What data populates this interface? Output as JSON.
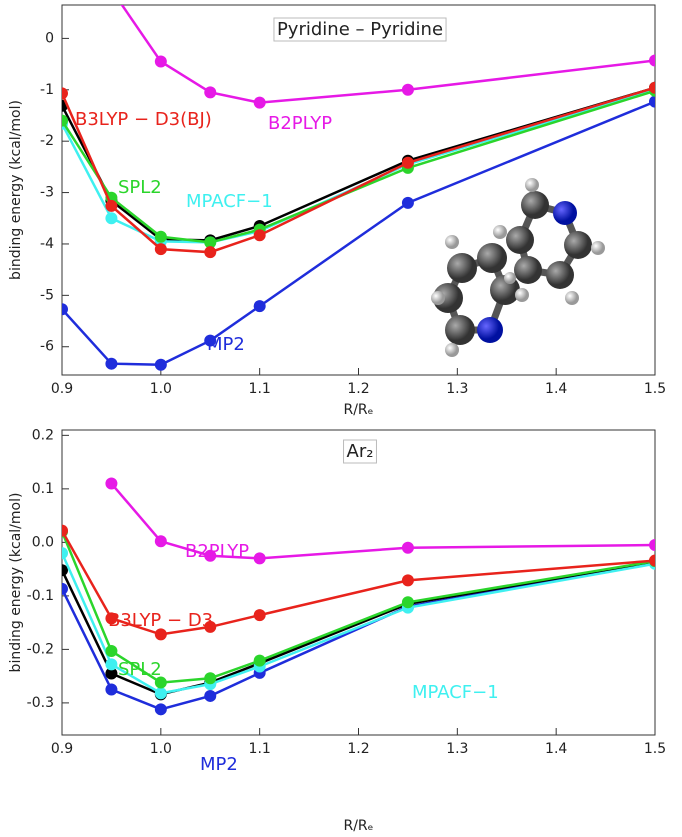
{
  "chart_data": [
    {
      "type": "line",
      "title": "Pyridine – Pyridine",
      "x_label": "R/Rₑ",
      "y_label": "binding energy (kcal/mol)",
      "x": [
        0.9,
        0.95,
        1.0,
        1.05,
        1.1,
        1.25,
        1.5
      ],
      "xlim": [
        0.9,
        1.5
      ],
      "ylim": [
        -6.55,
        0.65
      ],
      "xticks": [
        0.9,
        {
          "value": 1,
          "label": "1.0"
        },
        1.1,
        1.2,
        1.3,
        1.4,
        1.5
      ],
      "yticks": [
        -6,
        -5,
        -4,
        -3,
        -2,
        -1,
        0
      ],
      "series": [
        {
          "name": "B2PLYP",
          "color": "#e619e6",
          "values": [
            null,
            0.95,
            -0.45,
            -1.05,
            -1.25,
            -1.0,
            -0.43
          ]
        },
        {
          "name": "MP2",
          "color": "#1f2ddb",
          "values": [
            -5.27,
            -6.33,
            -6.35,
            -5.88,
            -5.21,
            -3.2,
            -1.23
          ]
        },
        {
          "color": "#000000",
          "values": [
            -1.31,
            -3.16,
            -3.91,
            -3.93,
            -3.65,
            -2.38,
            -0.96
          ]
        },
        {
          "name": "MPACF−1",
          "color": "#3ff0f0",
          "values": [
            -1.66,
            -3.5,
            -3.95,
            -3.97,
            -3.75,
            -2.45,
            -1.0
          ]
        },
        {
          "name": "SPL2",
          "color": "#2bd52b",
          "values": [
            -1.6,
            -3.1,
            -3.86,
            -3.97,
            -3.72,
            -2.52,
            -1.02
          ]
        },
        {
          "name": "B3LYP − D3(BJ)",
          "color": "#e8231c",
          "values": [
            -1.07,
            -3.26,
            -4.1,
            -4.16,
            -3.83,
            -2.42,
            -0.96
          ]
        }
      ]
    },
    {
      "type": "line",
      "title": "Ar₂",
      "x_label": "R/Rₑ",
      "y_label": "binding energy (kcal/mol)",
      "x": [
        0.9,
        0.95,
        1.0,
        1.05,
        1.1,
        1.25,
        1.5
      ],
      "xlim": [
        0.9,
        1.5
      ],
      "ylim": [
        -0.36,
        0.21
      ],
      "xticks": [
        0.9,
        {
          "value": 1,
          "label": "1.0"
        },
        1.1,
        1.2,
        1.3,
        1.4,
        1.5
      ],
      "yticks": [
        -0.3,
        -0.2,
        -0.1,
        {
          "value": 0,
          "label": "0.0"
        },
        0.1,
        0.2
      ],
      "series": [
        {
          "name": "B2PLYP",
          "color": "#e619e6",
          "values": [
            null,
            0.11,
            0.002,
            -0.025,
            -0.03,
            -0.01,
            -0.005
          ]
        },
        {
          "name": "MP2",
          "color": "#1f2ddb",
          "values": [
            -0.087,
            -0.275,
            -0.312,
            -0.287,
            -0.244,
            -0.12,
            -0.038
          ]
        },
        {
          "color": "#000000",
          "values": [
            -0.052,
            -0.245,
            -0.284,
            -0.262,
            -0.226,
            -0.115,
            -0.036
          ]
        },
        {
          "name": "MPACF−1",
          "color": "#3ff0f0",
          "values": [
            -0.02,
            -0.228,
            -0.282,
            -0.265,
            -0.232,
            -0.122,
            -0.04
          ]
        },
        {
          "name": "SPL2",
          "color": "#2bd52b",
          "values": [
            0.02,
            -0.203,
            -0.262,
            -0.254,
            -0.221,
            -0.112,
            -0.035
          ]
        },
        {
          "name": "B3LYP − D3",
          "color": "#e8231c",
          "values": [
            0.022,
            -0.142,
            -0.172,
            -0.158,
            -0.136,
            -0.071,
            -0.034
          ]
        }
      ]
    }
  ]
}
